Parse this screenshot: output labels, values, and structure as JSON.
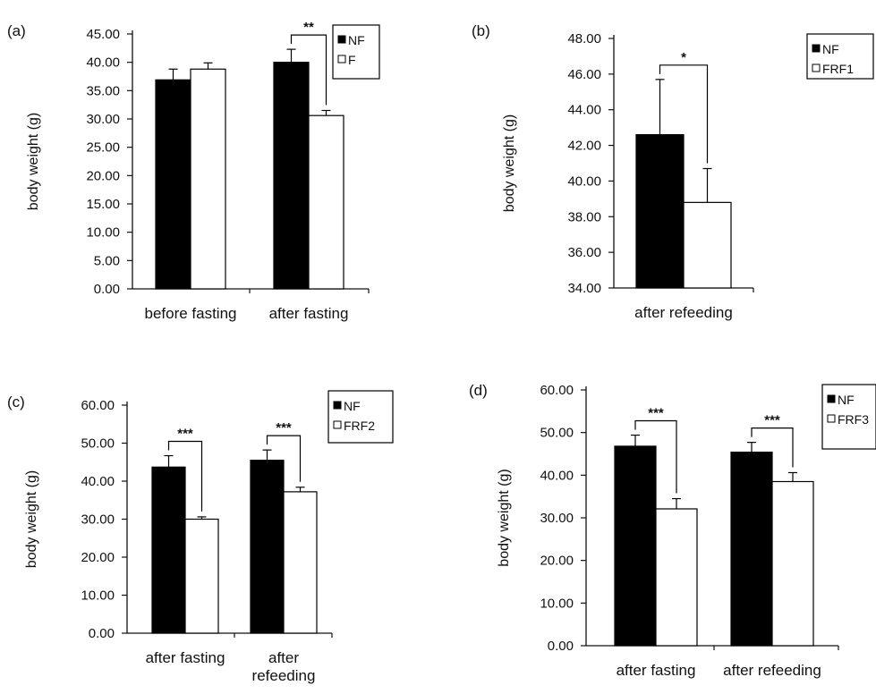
{
  "chart_data": [
    {
      "type": "bar",
      "panel_label": "(a)",
      "categories": [
        "before fasting",
        "after fasting"
      ],
      "series": [
        {
          "name": "NF",
          "values": [
            36.9,
            40.0
          ],
          "errors": [
            1.9,
            2.3
          ],
          "color": "#000000"
        },
        {
          "name": "F",
          "values": [
            38.8,
            30.6
          ],
          "errors": [
            1.1,
            0.9
          ],
          "color": "#ffffff"
        }
      ],
      "ylabel": "body weight (g)",
      "ylim": [
        0,
        45
      ],
      "yticks": [
        "0.00",
        "5.00",
        "10.00",
        "15.00",
        "20.00",
        "25.00",
        "30.00",
        "35.00",
        "40.00",
        "45.00"
      ],
      "legend": "top-right",
      "significance": [
        {
          "category": 1,
          "label": "**"
        }
      ],
      "grid": false
    },
    {
      "type": "bar",
      "panel_label": "(b)",
      "categories": [
        "after refeeding"
      ],
      "series": [
        {
          "name": "NF",
          "values": [
            42.6
          ],
          "errors": [
            3.1
          ],
          "color": "#000000"
        },
        {
          "name": "FRF1",
          "values": [
            38.8
          ],
          "errors": [
            1.9
          ],
          "color": "#ffffff"
        }
      ],
      "ylabel": "body weight (g)",
      "ylim": [
        34,
        48
      ],
      "yticks": [
        "34.00",
        "36.00",
        "38.00",
        "40.00",
        "42.00",
        "44.00",
        "46.00",
        "48.00"
      ],
      "legend": "top-right",
      "significance": [
        {
          "category": 0,
          "label": "*"
        }
      ],
      "grid": false
    },
    {
      "type": "bar",
      "panel_label": "(c)",
      "categories": [
        "after fasting",
        "after\nrefeeding"
      ],
      "series": [
        {
          "name": "NF",
          "values": [
            43.7,
            45.5
          ],
          "errors": [
            3.0,
            2.7
          ],
          "color": "#000000"
        },
        {
          "name": "FRF2",
          "values": [
            30.0,
            37.2
          ],
          "errors": [
            0.6,
            1.2
          ],
          "color": "#ffffff"
        }
      ],
      "ylabel": "body weight (g)",
      "ylim": [
        0,
        60
      ],
      "yticks": [
        "0.00",
        "10.00",
        "20.00",
        "30.00",
        "40.00",
        "50.00",
        "60.00"
      ],
      "legend": "top-right",
      "significance": [
        {
          "category": 0,
          "label": "***"
        },
        {
          "category": 1,
          "label": "***"
        }
      ],
      "grid": false
    },
    {
      "type": "bar",
      "panel_label": "(d)",
      "categories": [
        "after fasting",
        "after refeeding"
      ],
      "series": [
        {
          "name": "NF",
          "values": [
            46.8,
            45.4
          ],
          "errors": [
            2.6,
            2.3
          ],
          "color": "#000000"
        },
        {
          "name": "FRF3",
          "values": [
            32.1,
            38.5
          ],
          "errors": [
            2.4,
            2.1
          ],
          "color": "#ffffff"
        }
      ],
      "ylabel": "body weight (g)",
      "ylim": [
        0,
        60
      ],
      "yticks": [
        "0.00",
        "10.00",
        "20.00",
        "30.00",
        "40.00",
        "50.00",
        "60.00"
      ],
      "legend": "top-right",
      "significance": [
        {
          "category": 0,
          "label": "***"
        },
        {
          "category": 1,
          "label": "***"
        }
      ],
      "grid": false
    }
  ]
}
